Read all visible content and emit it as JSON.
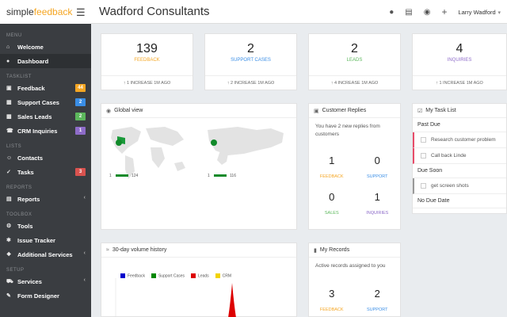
{
  "brand": {
    "part1": "simple",
    "part2": "feedback"
  },
  "header": {
    "title": "Wadford Consultants",
    "user": "Larry Wadford",
    "icons": [
      "user-icon",
      "bar-chart-icon",
      "globe-icon",
      "plus-icon"
    ]
  },
  "sidebar": {
    "sections": {
      "menu": "MENU",
      "tasklist": "TASKLIST",
      "lists": "LISTS",
      "reports": "REPORTS",
      "toolbox": "TOOLBOX",
      "setup": "SETUP"
    },
    "items": [
      {
        "label": "Welcome",
        "icon": "home-icon"
      },
      {
        "label": "Dashboard",
        "icon": "dashboard-icon"
      },
      {
        "label": "Feedback",
        "icon": "comment-icon",
        "badge": "44",
        "badge_color": "#f5a623"
      },
      {
        "label": "Support Cases",
        "icon": "book-icon",
        "badge": "2",
        "badge_color": "#3a8ee6"
      },
      {
        "label": "Sales Leads",
        "icon": "briefcase-icon",
        "badge": "2",
        "badge_color": "#5cb85c"
      },
      {
        "label": "CRM Inquiries",
        "icon": "phone-icon",
        "badge": "1",
        "badge_color": "#8e6cc9"
      },
      {
        "label": "Contacts",
        "icon": "contacts-icon"
      },
      {
        "label": "Tasks",
        "icon": "check-icon",
        "badge": "3",
        "badge_color": "#d9534f"
      },
      {
        "label": "Reports",
        "icon": "report-icon"
      },
      {
        "label": "Tools",
        "icon": "cog-icon"
      },
      {
        "label": "Issue Tracker",
        "icon": "bug-icon"
      },
      {
        "label": "Additional Services",
        "icon": "services-icon"
      },
      {
        "label": "Services",
        "icon": "truck-icon"
      },
      {
        "label": "Form Designer",
        "icon": "form-icon"
      }
    ]
  },
  "stats": [
    {
      "value": "139",
      "label": "FEEDBACK",
      "label_color": "#f5a623",
      "foot": "1 INCREASE 1M AGO"
    },
    {
      "value": "2",
      "label": "SUPPORT CASES",
      "label_color": "#3a8ee6",
      "foot": "2 INCREASE 1M AGO"
    },
    {
      "value": "2",
      "label": "LEADS",
      "label_color": "#5cb85c",
      "foot": "4 INCREASE 1M AGO"
    },
    {
      "value": "4",
      "label": "INQUIRIES",
      "label_color": "#8e6cc9",
      "foot": "1 INCREASE 1M AGO"
    }
  ],
  "global_view": {
    "title": "Global view",
    "map1": {
      "min": "1",
      "max": "124"
    },
    "map2": {
      "min": "1",
      "max": "116"
    }
  },
  "replies": {
    "title": "Customer Replies",
    "text": "You have 2 new replies from customers",
    "cells": [
      {
        "value": "1",
        "label": "FEEDBACK",
        "color": "#f5a623"
      },
      {
        "value": "0",
        "label": "SUPPORT",
        "color": "#3a8ee6"
      },
      {
        "value": "0",
        "label": "SALES",
        "color": "#5cb85c"
      },
      {
        "value": "1",
        "label": "INQUIRIES",
        "color": "#8e6cc9"
      }
    ]
  },
  "tasks": {
    "title": "My Task List",
    "past_due": "Past Due",
    "past_due_items": [
      "Research customer problem",
      "Call back Linde"
    ],
    "due_soon": "Due Soon",
    "due_soon_items": [
      "get screen shots"
    ],
    "no_due": "No Due Date"
  },
  "history": {
    "title": "30-day volume history",
    "legend": [
      {
        "name": "Feedback",
        "color": "#0000cc"
      },
      {
        "name": "Support Cases",
        "color": "#008800"
      },
      {
        "name": "Leads",
        "color": "#dd0000"
      },
      {
        "name": "CRM",
        "color": "#f2d300"
      }
    ]
  },
  "records": {
    "title": "My Records",
    "text": "Active records assigned to you",
    "cells": [
      {
        "value": "3",
        "label": "FEEDBACK",
        "color": "#f5a623"
      },
      {
        "value": "2",
        "label": "SUPPORT",
        "color": "#3a8ee6"
      }
    ]
  }
}
